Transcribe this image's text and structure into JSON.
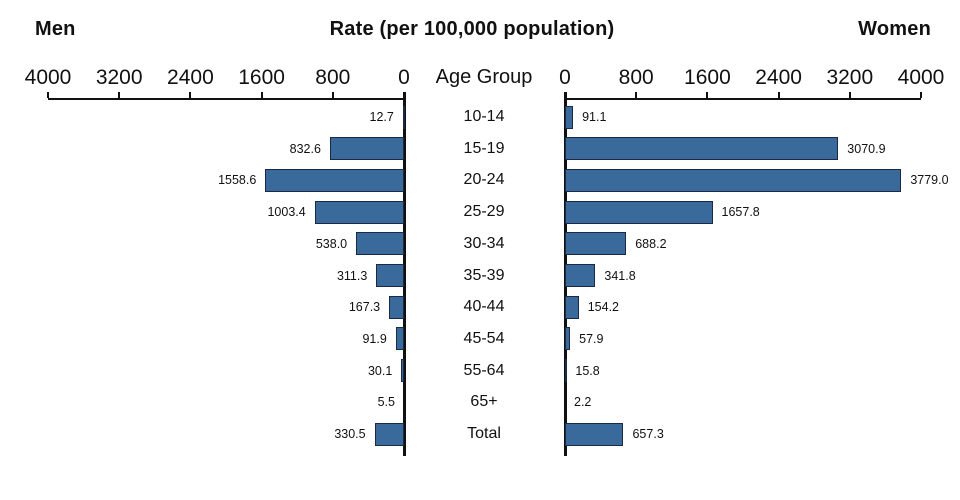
{
  "header": {
    "men": "Men",
    "title": "Rate (per 100,000 population)",
    "women": "Women"
  },
  "chart_data": {
    "type": "bar",
    "subtype": "mirrored-horizontal-pyramid",
    "title": "Rate (per 100,000 population)",
    "center_label": "Age Group",
    "categories": [
      "10-14",
      "15-19",
      "20-24",
      "25-29",
      "30-34",
      "35-39",
      "40-44",
      "45-54",
      "55-64",
      "65+",
      "Total"
    ],
    "series": [
      {
        "name": "Men",
        "side": "left",
        "values": [
          12.7,
          832.6,
          1558.6,
          1003.4,
          538.0,
          311.3,
          167.3,
          91.9,
          30.1,
          5.5,
          330.5
        ]
      },
      {
        "name": "Women",
        "side": "right",
        "values": [
          91.1,
          3070.9,
          3779.0,
          1657.8,
          688.2,
          341.8,
          154.2,
          57.9,
          15.8,
          2.2,
          657.3
        ]
      }
    ],
    "axis": {
      "ticks": [
        0,
        800,
        1600,
        2400,
        3200,
        4000
      ],
      "min": 0,
      "max": 4000,
      "mirrored": true,
      "grid": false,
      "value_decimals": 1
    },
    "bar_color": "#3A699C",
    "bar_border_color": "#1B2A44",
    "axis_color": "#111111"
  }
}
